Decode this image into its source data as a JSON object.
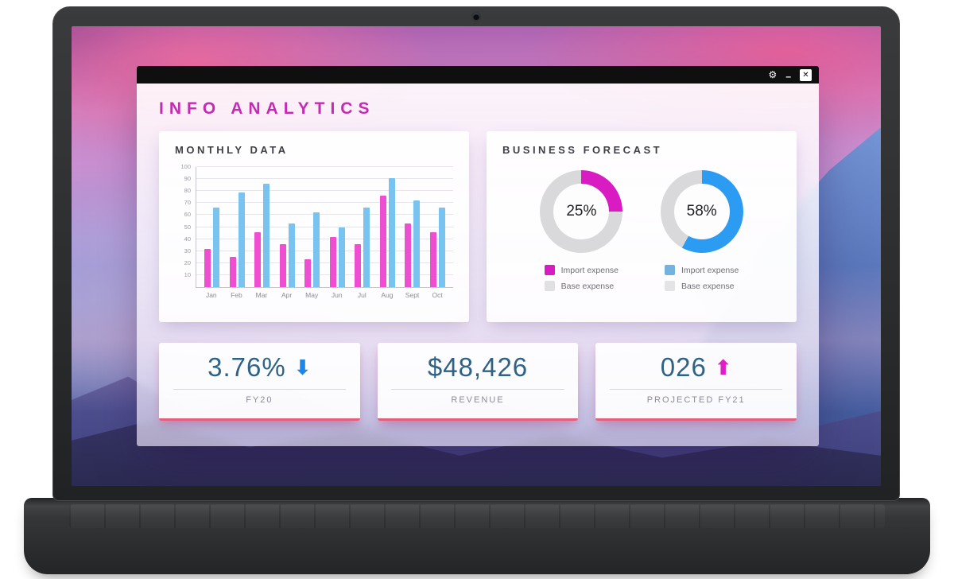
{
  "window": {
    "title": "INFO ANALYTICS",
    "controls": {
      "settings": "⚙",
      "minimize": "–",
      "close": "✕"
    }
  },
  "monthly": {
    "title": "MONTHLY DATA"
  },
  "forecast": {
    "title": "BUSINESS FORECAST",
    "donuts": [
      {
        "label": "25%",
        "value": 25,
        "color": "#d81cc2",
        "track_color": "#d9d9dc",
        "legend": [
          {
            "label": "Import expense",
            "color": "#d81cc2"
          },
          {
            "label": "Base expense",
            "color": "#e0e0e2"
          }
        ]
      },
      {
        "label": "58%",
        "value": 58,
        "color": "#2b9cf2",
        "track_color": "#d9d9dc",
        "legend": [
          {
            "label": "Import expense",
            "color": "#74b3dd"
          },
          {
            "label": "Base expense",
            "color": "#e4e4e6"
          }
        ]
      }
    ]
  },
  "stats": [
    {
      "value": "3.76%",
      "label": "FY20",
      "arrow_glyph": "⬇",
      "arrow_color": "#1d86e8"
    },
    {
      "value": "$48,426",
      "label": "REVENUE"
    },
    {
      "value": "026",
      "label": "PROJECTED FY21",
      "arrow_glyph": "⬆",
      "arrow_color": "#e01ec8"
    }
  ],
  "chart_data": [
    {
      "type": "bar",
      "title": "MONTHLY DATA",
      "categories": [
        "Jan",
        "Feb",
        "Mar",
        "Apr",
        "May",
        "Jun",
        "Jul",
        "Aug",
        "Sept",
        "Oct"
      ],
      "series": [
        {
          "name": "magenta",
          "color": "#ee4fd0",
          "values": [
            32,
            25,
            46,
            36,
            23,
            42,
            36,
            76,
            53,
            46
          ]
        },
        {
          "name": "blue",
          "color": "#79c3f0",
          "values": [
            66,
            79,
            86,
            53,
            62,
            50,
            66,
            91,
            72,
            66
          ]
        }
      ],
      "xlabel": "",
      "ylabel": "",
      "ylim": [
        0,
        100
      ],
      "yticks": [
        10,
        20,
        30,
        40,
        50,
        60,
        70,
        80,
        90,
        100
      ],
      "grid": true,
      "legend_position": "none"
    },
    {
      "type": "pie",
      "title": "BUSINESS FORECAST",
      "center_label": "25%",
      "slices": [
        {
          "label": "Import expense",
          "value": 25
        },
        {
          "label": "Base expense",
          "value": 75
        }
      ]
    },
    {
      "type": "pie",
      "title": "BUSINESS FORECAST",
      "center_label": "58%",
      "slices": [
        {
          "label": "Import expense",
          "value": 58
        },
        {
          "label": "Base expense",
          "value": 42
        }
      ]
    }
  ]
}
